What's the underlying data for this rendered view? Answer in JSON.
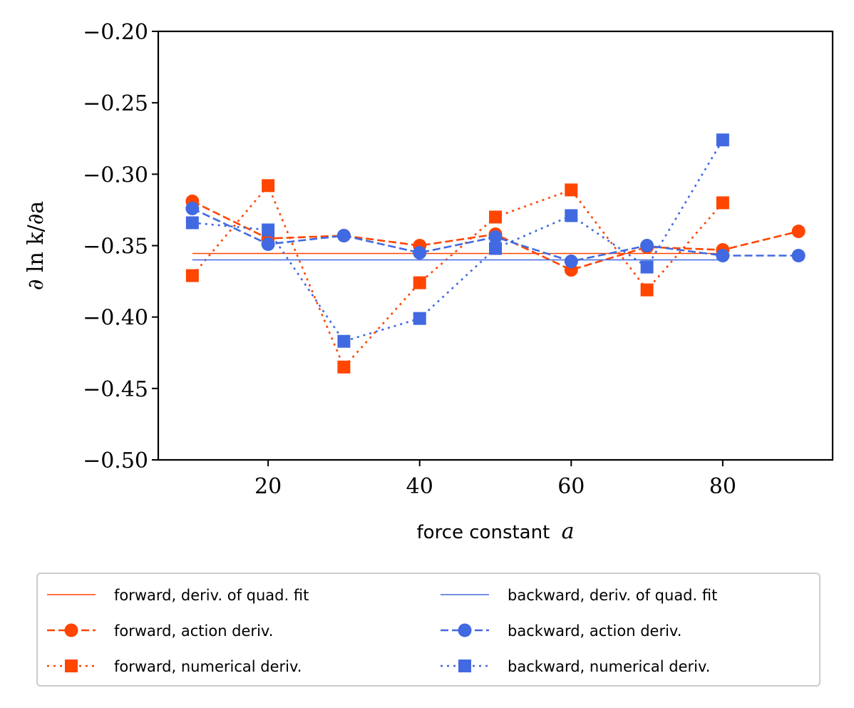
{
  "chart_data": {
    "type": "line",
    "xlabel_text": "force constant",
    "xlabel_var": "a",
    "ylabel": "∂ ln k/∂a",
    "xlim": [
      5.5,
      94.5
    ],
    "ylim": [
      -0.5,
      -0.2
    ],
    "xticks": [
      20,
      40,
      60,
      80
    ],
    "xtick_labels": [
      "20",
      "40",
      "60",
      "80"
    ],
    "yticks": [
      -0.2,
      -0.25,
      -0.3,
      -0.35,
      -0.4,
      -0.45,
      -0.5
    ],
    "ytick_labels": [
      "−0.20",
      "−0.25",
      "−0.30",
      "−0.35",
      "−0.40",
      "−0.45",
      "−0.50"
    ],
    "legend_position": "below",
    "series": [
      {
        "name": "forward, deriv. of quad. fit",
        "color": "#FF4500",
        "style": "solid",
        "marker": "none",
        "x": [
          10,
          80
        ],
        "y": [
          -0.3555,
          -0.3555
        ]
      },
      {
        "name": "forward, action deriv.",
        "color": "#FF4500",
        "style": "dashed",
        "marker": "circle",
        "x": [
          10,
          20,
          30,
          40,
          50,
          60,
          70,
          80,
          90
        ],
        "y": [
          -0.319,
          -0.345,
          -0.343,
          -0.35,
          -0.342,
          -0.367,
          -0.351,
          -0.353,
          -0.34
        ]
      },
      {
        "name": "forward, numerical deriv.",
        "color": "#FF4500",
        "style": "dotted",
        "marker": "square",
        "x": [
          10,
          20,
          30,
          40,
          50,
          60,
          70,
          80
        ],
        "y": [
          -0.371,
          -0.308,
          -0.435,
          -0.376,
          -0.33,
          -0.311,
          -0.381,
          -0.32
        ]
      },
      {
        "name": "backward, deriv. of quad. fit",
        "color": "#4169E1",
        "style": "solid",
        "marker": "none",
        "x": [
          10,
          80
        ],
        "y": [
          -0.36,
          -0.36
        ]
      },
      {
        "name": "backward, action deriv.",
        "color": "#4169E1",
        "style": "dashed",
        "marker": "circle",
        "x": [
          10,
          20,
          30,
          40,
          50,
          60,
          70,
          80,
          90
        ],
        "y": [
          -0.324,
          -0.349,
          -0.343,
          -0.355,
          -0.344,
          -0.361,
          -0.35,
          -0.357,
          -0.357
        ]
      },
      {
        "name": "backward, numerical deriv.",
        "color": "#4169E1",
        "style": "dotted",
        "marker": "square",
        "x": [
          10,
          20,
          30,
          40,
          50,
          60,
          70,
          80
        ],
        "y": [
          -0.334,
          -0.339,
          -0.417,
          -0.401,
          -0.352,
          -0.329,
          -0.365,
          -0.276
        ]
      }
    ]
  }
}
